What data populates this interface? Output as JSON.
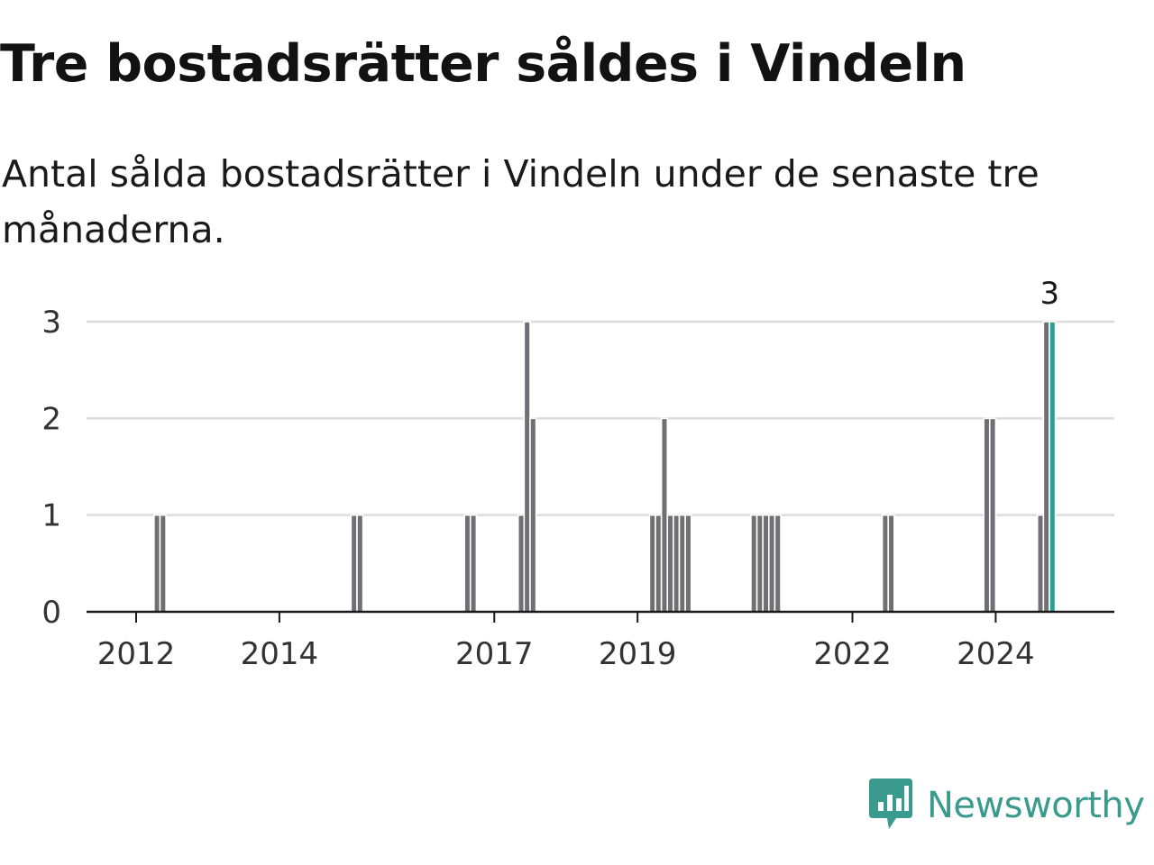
{
  "header": {
    "title": "Tre bostadsrätter såldes i Vindeln",
    "subtitle": "Antal sålda bostadsrätter i Vindeln under de senaste tre månaderna."
  },
  "chart_data": {
    "type": "bar",
    "xlabel": "",
    "ylabel": "",
    "ylim": [
      0,
      3
    ],
    "yticks": [
      0,
      1,
      2,
      3
    ],
    "xticks": [
      "2012",
      "2014",
      "2017",
      "2019",
      "2022",
      "2024"
    ],
    "grid": true,
    "bar_color": "#707074",
    "highlight_color": "#25a396",
    "bars": [
      {
        "date": "2012-04",
        "value": 1
      },
      {
        "date": "2012-05",
        "value": 1
      },
      {
        "date": "2015-01",
        "value": 1
      },
      {
        "date": "2015-02",
        "value": 1
      },
      {
        "date": "2016-08",
        "value": 1
      },
      {
        "date": "2016-09",
        "value": 1
      },
      {
        "date": "2017-05",
        "value": 1
      },
      {
        "date": "2017-06",
        "value": 3
      },
      {
        "date": "2017-07",
        "value": 2
      },
      {
        "date": "2019-03",
        "value": 1
      },
      {
        "date": "2019-04",
        "value": 1
      },
      {
        "date": "2019-05",
        "value": 2
      },
      {
        "date": "2019-06",
        "value": 1
      },
      {
        "date": "2019-07",
        "value": 1
      },
      {
        "date": "2019-08",
        "value": 1
      },
      {
        "date": "2019-09",
        "value": 1
      },
      {
        "date": "2020-08",
        "value": 1
      },
      {
        "date": "2020-09",
        "value": 1
      },
      {
        "date": "2020-10",
        "value": 1
      },
      {
        "date": "2020-11",
        "value": 1
      },
      {
        "date": "2020-12",
        "value": 1
      },
      {
        "date": "2022-06",
        "value": 1
      },
      {
        "date": "2022-07",
        "value": 1
      },
      {
        "date": "2023-11",
        "value": 2
      },
      {
        "date": "2023-12",
        "value": 2
      },
      {
        "date": "2024-08",
        "value": 1
      },
      {
        "date": "2024-09",
        "value": 3
      },
      {
        "date": "2024-10",
        "value": 3,
        "highlight": true
      }
    ],
    "annotation": "3"
  },
  "brand": {
    "name": "Newsworthy",
    "color": "#3a9a8e",
    "icon": "newsworthy-logo-icon"
  }
}
